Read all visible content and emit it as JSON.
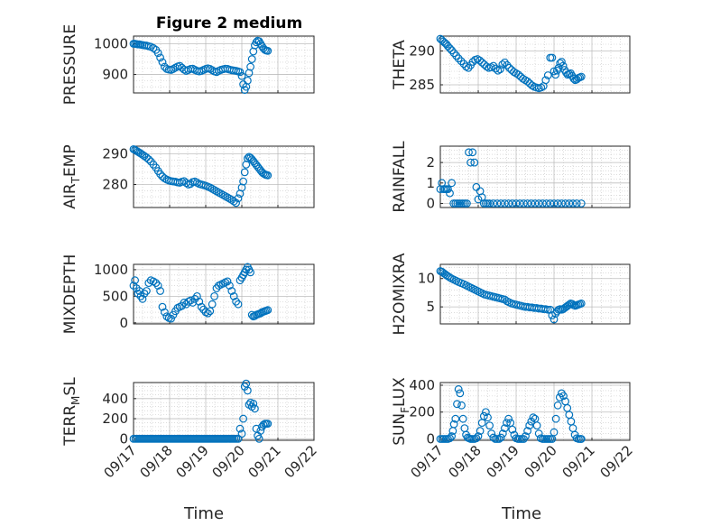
{
  "figure": {
    "title": "Figure 2 medium",
    "x_tick_labels": [
      "09/17",
      "09/18",
      "09/19",
      "09/20",
      "09/21",
      "09/22"
    ],
    "marker_color": "#0072BD",
    "axes_color": "#262626",
    "grid_color": "#b8b8b8"
  },
  "chart_data": [
    {
      "type": "scatter",
      "ylabel": "PRESSURE",
      "xlabel": "",
      "xlim": [
        0,
        5
      ],
      "ylim": [
        840,
        1025
      ],
      "yticks": [
        900,
        1000
      ],
      "grid": true,
      "x": [
        0.0,
        0.04,
        0.08,
        0.12,
        0.16,
        0.2,
        0.25,
        0.3,
        0.36,
        0.42,
        0.48,
        0.55,
        0.62,
        0.68,
        0.74,
        0.8,
        0.86,
        0.92,
        0.98,
        1.04,
        1.1,
        1.16,
        1.22,
        1.28,
        1.34,
        1.4,
        1.46,
        1.52,
        1.58,
        1.64,
        1.7,
        1.76,
        1.82,
        1.88,
        1.94,
        2.0,
        2.06,
        2.12,
        2.18,
        2.24,
        2.3,
        2.36,
        2.42,
        2.48,
        2.54,
        2.6,
        2.66,
        2.72,
        2.78,
        2.84,
        2.9,
        2.95,
        3.0,
        3.04,
        3.08,
        3.12,
        3.16,
        3.2,
        3.24,
        3.28,
        3.32,
        3.36,
        3.4,
        3.44,
        3.48,
        3.52,
        3.56,
        3.6,
        3.64,
        3.68,
        3.72
      ],
      "y": [
        1000,
        1000,
        999,
        998,
        998,
        997,
        996,
        995,
        994,
        992,
        990,
        986,
        980,
        970,
        955,
        940,
        925,
        918,
        916,
        915,
        918,
        922,
        926,
        928,
        922,
        916,
        912,
        915,
        918,
        919,
        915,
        912,
        910,
        912,
        915,
        918,
        920,
        918,
        914,
        910,
        908,
        912,
        915,
        917,
        919,
        918,
        916,
        914,
        913,
        912,
        910,
        908,
        895,
        868,
        850,
        860,
        880,
        905,
        925,
        950,
        975,
        995,
        1005,
        1010,
        1008,
        1000,
        992,
        985,
        980,
        978,
        977
      ],
      "xlabel_note": ""
    },
    {
      "type": "scatter",
      "ylabel": "THETA",
      "xlabel": "",
      "xlim": [
        0,
        5
      ],
      "ylim": [
        283.8,
        292.2
      ],
      "yticks": [
        285,
        290
      ],
      "grid": true,
      "x": [
        0.0,
        0.04,
        0.08,
        0.12,
        0.16,
        0.2,
        0.25,
        0.3,
        0.36,
        0.42,
        0.48,
        0.55,
        0.62,
        0.68,
        0.74,
        0.8,
        0.86,
        0.92,
        0.98,
        1.04,
        1.1,
        1.16,
        1.22,
        1.28,
        1.34,
        1.4,
        1.46,
        1.52,
        1.58,
        1.64,
        1.7,
        1.76,
        1.82,
        1.88,
        1.94,
        2.0,
        2.06,
        2.12,
        2.18,
        2.24,
        2.3,
        2.36,
        2.42,
        2.48,
        2.54,
        2.6,
        2.66,
        2.72,
        2.78,
        2.84,
        2.9,
        2.95,
        3.0,
        3.04,
        3.08,
        3.12,
        3.16,
        3.2,
        3.24,
        3.28,
        3.32,
        3.36,
        3.4,
        3.44,
        3.48,
        3.52,
        3.56,
        3.6,
        3.64,
        3.68,
        3.72
      ],
      "y": [
        291.8,
        291.6,
        291.4,
        291.2,
        291.0,
        290.7,
        290.4,
        290.1,
        289.7,
        289.3,
        288.9,
        288.5,
        288.1,
        287.7,
        287.5,
        287.9,
        288.4,
        288.7,
        288.8,
        288.6,
        288.3,
        288.0,
        287.7,
        287.5,
        287.6,
        287.8,
        287.4,
        287.1,
        287.3,
        288.0,
        288.3,
        287.9,
        287.5,
        287.2,
        286.9,
        286.7,
        286.5,
        286.2,
        285.9,
        285.7,
        285.5,
        285.2,
        284.9,
        284.7,
        284.6,
        284.5,
        284.6,
        284.8,
        285.7,
        286.4,
        289.0,
        289.0,
        287.0,
        286.5,
        287.1,
        287.5,
        288.2,
        288.4,
        287.8,
        287.2,
        286.8,
        286.5,
        286.6,
        286.7,
        286.3,
        285.9,
        285.7,
        285.8,
        286.0,
        286.1,
        286.2
      ]
    },
    {
      "type": "scatter",
      "ylabel": "AIR_TEMP",
      "ylabel_main": "AIR",
      "ylabel_sub": "T",
      "ylabel_rest": "EMP",
      "xlabel": "",
      "xlim": [
        0,
        5
      ],
      "ylim": [
        272.5,
        292.5
      ],
      "yticks": [
        280,
        290
      ],
      "grid": true,
      "x": [
        0.0,
        0.04,
        0.08,
        0.12,
        0.16,
        0.2,
        0.25,
        0.3,
        0.36,
        0.42,
        0.48,
        0.55,
        0.62,
        0.68,
        0.74,
        0.8,
        0.86,
        0.92,
        0.98,
        1.04,
        1.1,
        1.16,
        1.22,
        1.28,
        1.34,
        1.4,
        1.46,
        1.52,
        1.58,
        1.64,
        1.7,
        1.76,
        1.82,
        1.88,
        1.94,
        2.0,
        2.06,
        2.12,
        2.18,
        2.24,
        2.3,
        2.36,
        2.42,
        2.48,
        2.54,
        2.6,
        2.66,
        2.72,
        2.78,
        2.84,
        2.9,
        2.95,
        3.0,
        3.04,
        3.08,
        3.12,
        3.16,
        3.2,
        3.24,
        3.28,
        3.32,
        3.36,
        3.4,
        3.44,
        3.48,
        3.52,
        3.56,
        3.6,
        3.64,
        3.68,
        3.72
      ],
      "y": [
        291.5,
        291.3,
        291.0,
        290.7,
        290.4,
        290.1,
        289.7,
        289.3,
        288.8,
        288.2,
        287.5,
        286.5,
        285.5,
        284.4,
        283.4,
        282.6,
        282.0,
        281.6,
        281.3,
        281.1,
        281.0,
        280.9,
        280.7,
        280.6,
        280.9,
        281.1,
        280.5,
        280.0,
        280.2,
        280.8,
        281.0,
        280.6,
        280.2,
        280.0,
        279.8,
        279.6,
        279.3,
        279.0,
        278.6,
        278.2,
        277.8,
        277.4,
        277.0,
        276.6,
        276.2,
        275.8,
        275.4,
        275.0,
        274.5,
        274.0,
        275.5,
        277.0,
        279.0,
        281.0,
        284.0,
        286.5,
        288.5,
        289.0,
        288.7,
        288.2,
        287.6,
        287.0,
        286.4,
        285.8,
        285.2,
        284.6,
        284.0,
        283.6,
        283.3,
        283.1,
        283.0
      ]
    },
    {
      "type": "scatter",
      "ylabel": "RAINFALL",
      "xlabel": "",
      "xlim": [
        0,
        5
      ],
      "ylim": [
        -0.2,
        2.8
      ],
      "yticks": [
        0,
        1,
        2
      ],
      "grid": true,
      "x": [
        0.0,
        0.04,
        0.08,
        0.12,
        0.16,
        0.2,
        0.25,
        0.3,
        0.35,
        0.4,
        0.45,
        0.5,
        0.55,
        0.6,
        0.65,
        0.7,
        0.75,
        0.8,
        0.85,
        0.9,
        0.95,
        1.0,
        1.05,
        1.1,
        1.15,
        1.2,
        1.25,
        1.3,
        1.4,
        1.5,
        1.6,
        1.7,
        1.8,
        1.9,
        2.0,
        2.1,
        2.2,
        2.3,
        2.4,
        2.5,
        2.6,
        2.7,
        2.8,
        2.9,
        3.0,
        3.1,
        3.2,
        3.3,
        3.4,
        3.5,
        3.6,
        3.72
      ],
      "y": [
        0.7,
        1.0,
        0.7,
        0.7,
        0.7,
        0.7,
        0.5,
        1.0,
        0,
        0,
        0,
        0,
        0,
        0,
        0,
        0,
        2.5,
        2.0,
        2.5,
        2.0,
        0.8,
        0.2,
        0.6,
        0.3,
        0,
        0,
        0,
        0,
        0,
        0,
        0,
        0,
        0,
        0,
        0,
        0,
        0,
        0,
        0,
        0,
        0,
        0,
        0,
        0,
        0,
        0,
        0,
        0,
        0,
        0,
        0,
        0
      ]
    },
    {
      "type": "scatter",
      "ylabel": "MIXDEPTH",
      "xlabel": "",
      "xlim": [
        0,
        5
      ],
      "ylim": [
        -20,
        1100
      ],
      "yticks": [
        0,
        500,
        1000
      ],
      "grid": true,
      "x": [
        0.0,
        0.04,
        0.08,
        0.12,
        0.16,
        0.2,
        0.25,
        0.3,
        0.36,
        0.42,
        0.48,
        0.55,
        0.62,
        0.68,
        0.74,
        0.8,
        0.86,
        0.92,
        0.98,
        1.04,
        1.1,
        1.16,
        1.22,
        1.28,
        1.34,
        1.4,
        1.46,
        1.52,
        1.58,
        1.64,
        1.7,
        1.76,
        1.82,
        1.88,
        1.94,
        2.0,
        2.06,
        2.12,
        2.18,
        2.24,
        2.3,
        2.36,
        2.42,
        2.48,
        2.54,
        2.6,
        2.66,
        2.72,
        2.78,
        2.84,
        2.9,
        2.95,
        3.0,
        3.04,
        3.08,
        3.12,
        3.16,
        3.2,
        3.24,
        3.28,
        3.32,
        3.36,
        3.4,
        3.44,
        3.48,
        3.52,
        3.56,
        3.6,
        3.64,
        3.68,
        3.72
      ],
      "y": [
        700,
        800,
        650,
        550,
        600,
        500,
        450,
        550,
        600,
        750,
        800,
        780,
        750,
        700,
        600,
        300,
        200,
        120,
        90,
        80,
        150,
        220,
        280,
        300,
        320,
        380,
        350,
        400,
        420,
        380,
        450,
        500,
        400,
        300,
        250,
        200,
        180,
        220,
        350,
        500,
        650,
        700,
        720,
        740,
        760,
        780,
        700,
        600,
        500,
        400,
        350,
        800,
        850,
        900,
        950,
        1000,
        1050,
        1000,
        950,
        150,
        120,
        130,
        150,
        160,
        170,
        180,
        200,
        210,
        220,
        230,
        240
      ]
    },
    {
      "type": "scatter",
      "ylabel": "H2OMIXRA",
      "xlabel": "",
      "xlim": [
        0,
        5
      ],
      "ylim": [
        2.0,
        12.5
      ],
      "yticks": [
        5,
        10
      ],
      "grid": true,
      "x": [
        0.0,
        0.04,
        0.08,
        0.12,
        0.16,
        0.2,
        0.25,
        0.3,
        0.36,
        0.42,
        0.48,
        0.55,
        0.62,
        0.68,
        0.74,
        0.8,
        0.86,
        0.92,
        0.98,
        1.04,
        1.1,
        1.16,
        1.22,
        1.28,
        1.34,
        1.4,
        1.46,
        1.52,
        1.58,
        1.64,
        1.7,
        1.76,
        1.82,
        1.88,
        1.94,
        2.0,
        2.06,
        2.12,
        2.18,
        2.24,
        2.3,
        2.36,
        2.42,
        2.48,
        2.54,
        2.6,
        2.66,
        2.72,
        2.78,
        2.84,
        2.9,
        2.95,
        3.0,
        3.04,
        3.08,
        3.12,
        3.16,
        3.2,
        3.24,
        3.28,
        3.32,
        3.36,
        3.4,
        3.44,
        3.48,
        3.52,
        3.56,
        3.6,
        3.64,
        3.68,
        3.72
      ],
      "y": [
        11.3,
        11.2,
        11.0,
        10.8,
        10.6,
        10.4,
        10.2,
        10.0,
        9.8,
        9.6,
        9.4,
        9.2,
        9.0,
        8.8,
        8.6,
        8.4,
        8.2,
        8.0,
        7.8,
        7.6,
        7.4,
        7.2,
        7.1,
        7.0,
        6.9,
        6.8,
        6.7,
        6.6,
        6.5,
        6.4,
        6.3,
        6.0,
        5.8,
        5.6,
        5.5,
        5.4,
        5.3,
        5.2,
        5.1,
        5.0,
        5.0,
        4.9,
        4.9,
        4.8,
        4.8,
        4.7,
        4.7,
        4.6,
        4.6,
        4.5,
        4.5,
        3.5,
        2.8,
        3.8,
        4.2,
        4.5,
        4.6,
        4.5,
        4.6,
        4.8,
        5.0,
        5.2,
        5.4,
        5.6,
        5.5,
        5.3,
        5.2,
        5.3,
        5.4,
        5.5,
        5.6
      ]
    },
    {
      "type": "scatter",
      "ylabel": "TERR_MSL",
      "ylabel_main": "TERR",
      "ylabel_sub": "M",
      "ylabel_rest": "SL",
      "xlabel": "",
      "xlim": [
        0,
        5
      ],
      "ylim": [
        -15,
        560
      ],
      "yticks": [
        0,
        200,
        400
      ],
      "grid": true,
      "x": [
        0.0,
        0.05,
        0.1,
        0.15,
        0.2,
        0.25,
        0.3,
        0.35,
        0.4,
        0.45,
        0.5,
        0.55,
        0.6,
        0.65,
        0.7,
        0.75,
        0.8,
        0.85,
        0.9,
        0.95,
        1.0,
        1.05,
        1.1,
        1.15,
        1.2,
        1.25,
        1.3,
        1.35,
        1.4,
        1.45,
        1.5,
        1.55,
        1.6,
        1.65,
        1.7,
        1.75,
        1.8,
        1.85,
        1.9,
        1.95,
        2.0,
        2.05,
        2.1,
        2.15,
        2.2,
        2.25,
        2.3,
        2.35,
        2.4,
        2.45,
        2.5,
        2.55,
        2.6,
        2.65,
        2.7,
        2.75,
        2.8,
        2.85,
        2.9,
        2.95,
        3.0,
        3.04,
        3.08,
        3.12,
        3.16,
        3.2,
        3.24,
        3.28,
        3.32,
        3.36,
        3.4,
        3.44,
        3.48,
        3.52,
        3.56,
        3.6,
        3.64,
        3.68,
        3.72
      ],
      "y": [
        0,
        0,
        0,
        0,
        0,
        0,
        0,
        0,
        0,
        0,
        0,
        0,
        0,
        0,
        0,
        0,
        0,
        0,
        0,
        0,
        0,
        0,
        0,
        0,
        0,
        0,
        0,
        0,
        0,
        0,
        0,
        0,
        0,
        0,
        0,
        0,
        0,
        0,
        0,
        0,
        0,
        0,
        0,
        0,
        0,
        0,
        0,
        0,
        0,
        0,
        0,
        0,
        0,
        0,
        0,
        0,
        0,
        0,
        0,
        100,
        50,
        200,
        520,
        550,
        480,
        340,
        360,
        320,
        350,
        300,
        100,
        30,
        0,
        80,
        120,
        140,
        150,
        150,
        150
      ]
    },
    {
      "type": "scatter",
      "ylabel": "SUN_FLUX",
      "ylabel_main": "SUN",
      "ylabel_sub": "F",
      "ylabel_rest": "LUX",
      "xlabel": "",
      "xlim": [
        0,
        5
      ],
      "ylim": [
        -10,
        420
      ],
      "yticks": [
        0,
        200,
        400
      ],
      "grid": true,
      "x": [
        0.0,
        0.05,
        0.1,
        0.15,
        0.2,
        0.25,
        0.3,
        0.33,
        0.36,
        0.4,
        0.44,
        0.48,
        0.52,
        0.56,
        0.6,
        0.64,
        0.68,
        0.72,
        0.76,
        0.8,
        0.85,
        0.9,
        0.95,
        1.0,
        1.05,
        1.1,
        1.15,
        1.2,
        1.25,
        1.3,
        1.35,
        1.4,
        1.45,
        1.5,
        1.55,
        1.6,
        1.65,
        1.7,
        1.75,
        1.8,
        1.85,
        1.9,
        1.95,
        2.0,
        2.05,
        2.1,
        2.15,
        2.2,
        2.25,
        2.3,
        2.35,
        2.4,
        2.45,
        2.5,
        2.55,
        2.6,
        2.65,
        2.7,
        2.75,
        2.8,
        2.85,
        2.9,
        2.95,
        3.0,
        3.05,
        3.1,
        3.15,
        3.2,
        3.25,
        3.3,
        3.35,
        3.4,
        3.45,
        3.5,
        3.55,
        3.6,
        3.65,
        3.7,
        3.72
      ],
      "y": [
        0,
        0,
        0,
        0,
        0,
        5,
        20,
        60,
        110,
        150,
        260,
        370,
        340,
        250,
        150,
        80,
        30,
        10,
        5,
        0,
        0,
        0,
        5,
        20,
        60,
        120,
        170,
        200,
        160,
        100,
        40,
        10,
        0,
        0,
        0,
        10,
        40,
        80,
        120,
        150,
        120,
        70,
        30,
        5,
        0,
        0,
        0,
        0,
        20,
        60,
        100,
        130,
        160,
        150,
        100,
        40,
        5,
        0,
        0,
        0,
        0,
        0,
        0,
        50,
        150,
        250,
        310,
        340,
        320,
        280,
        230,
        180,
        130,
        80,
        30,
        5,
        0,
        0,
        0
      ]
    }
  ]
}
